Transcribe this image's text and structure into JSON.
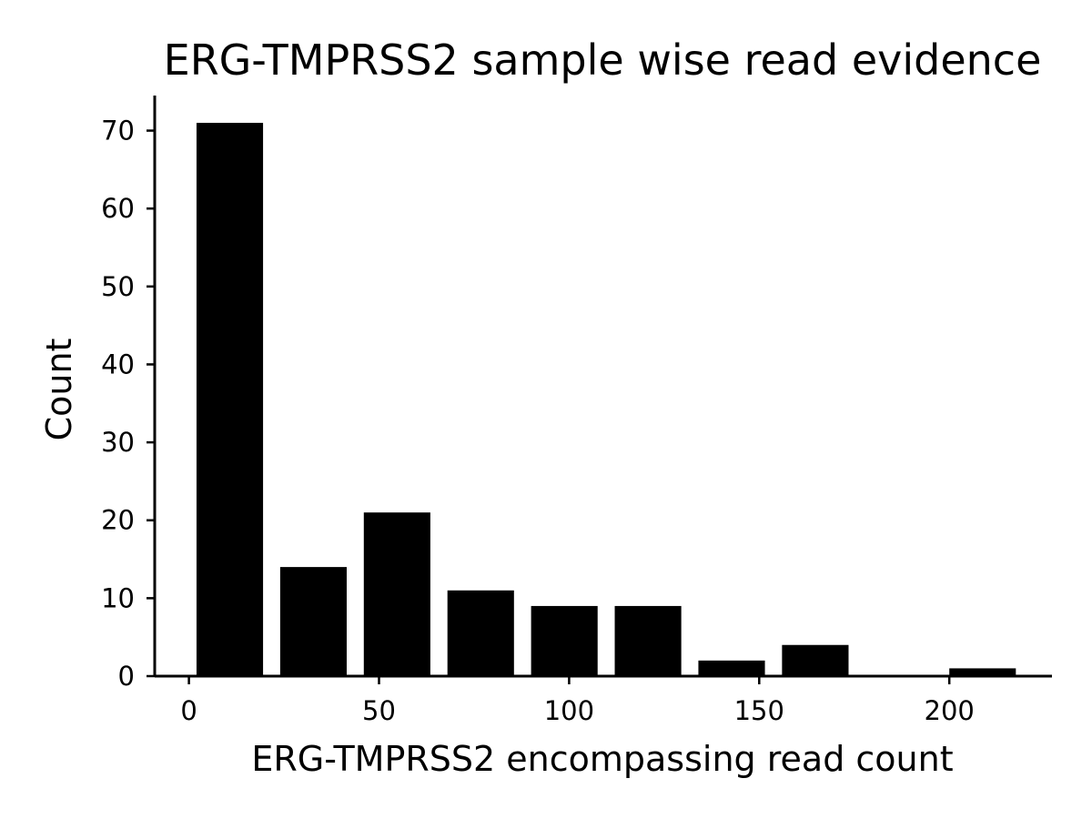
{
  "chart_data": {
    "type": "bar",
    "title": "ERG-TMPRSS2 sample wise read evidence",
    "xlabel": "ERG-TMPRSS2 encompassing read count",
    "ylabel": "Count",
    "xlim": [
      -9,
      227
    ],
    "ylim": [
      0,
      74.5
    ],
    "xticks": [
      0,
      50,
      100,
      150,
      200
    ],
    "yticks": [
      0,
      10,
      20,
      30,
      40,
      50,
      60,
      70
    ],
    "bins": [
      {
        "start": 2,
        "end": 19.5,
        "count": 71
      },
      {
        "start": 24,
        "end": 41.5,
        "count": 14
      },
      {
        "start": 46,
        "end": 63.5,
        "count": 21
      },
      {
        "start": 68,
        "end": 85.5,
        "count": 11
      },
      {
        "start": 90,
        "end": 107.5,
        "count": 9
      },
      {
        "start": 112,
        "end": 129.5,
        "count": 9
      },
      {
        "start": 134,
        "end": 151.5,
        "count": 2
      },
      {
        "start": 156,
        "end": 173.5,
        "count": 4
      },
      {
        "start": 200,
        "end": 217.5,
        "count": 1
      }
    ],
    "bar_color": "#000000",
    "grid": false,
    "legend": "none"
  }
}
